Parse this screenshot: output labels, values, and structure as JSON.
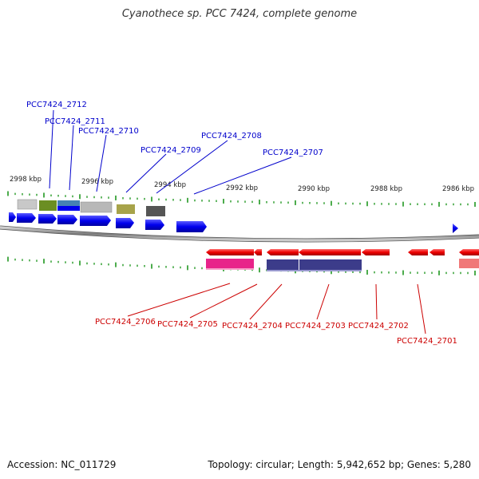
{
  "title": "Cyanothece sp. PCC 7424, complete genome",
  "accession_text": "Accession: NC_011729",
  "summary_text": "Topology: circular; Length: 5,942,652 bp; Genes: 5,280",
  "colors": {
    "forward_label": "#0000cc",
    "reverse_label": "#cc0000",
    "forward_gene": "#0000ee",
    "reverse_gene": "#ee0000",
    "tick": "#008800",
    "backbone": "#888888"
  },
  "scale_labels": [
    "2998 kbp",
    "2996 kbp",
    "2994 kbp",
    "2992 kbp",
    "2990 kbp",
    "2988 kbp",
    "2986 kbp"
  ],
  "forward_labels": [
    "PCC7424_2712",
    "PCC7424_2711",
    "PCC7424_2710",
    "PCC7424_2709",
    "PCC7424_2708",
    "PCC7424_2707"
  ],
  "reverse_labels": [
    "PCC7424_2706",
    "PCC7424_2705",
    "PCC7424_2704",
    "PCC7424_2703",
    "PCC7424_2702",
    "PCC7424_2701"
  ]
}
